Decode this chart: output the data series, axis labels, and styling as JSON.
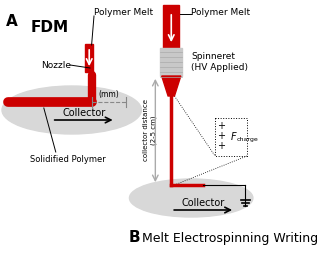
{
  "bg_color": "#ffffff",
  "panel_A_label": "A",
  "panel_B_label": "B",
  "fdm_label": "FDM",
  "melt_es_label": "Melt Electrospinning Writing",
  "polymer_melt_label": "Polymer Melt",
  "nozzle_label": "Nozzle",
  "collector_label_A": "Collector",
  "collector_label_B": "Collector",
  "solidified_label": "Solidified Polymer",
  "spinneret_label": "Spinneret\n(HV Applied)",
  "mm_label": "(mm)",
  "distance_label": "collector distance\n(2-5 cm)",
  "fcharge_label": "F",
  "fcharge_sub": "charge",
  "collector_dist_arrow_color": "#aaaaaa",
  "red_color": "#cc0000",
  "gray_color": "#c8c8c8",
  "ellipse_color": "#d8d8d8",
  "dashed_color": "#888888",
  "text_color": "#000000",
  "ground_color": "#000000"
}
